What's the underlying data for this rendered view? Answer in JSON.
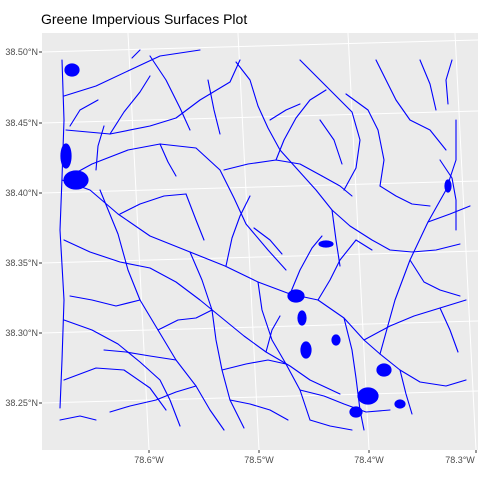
{
  "title": "Greene Impervious Surfaces Plot",
  "colors": {
    "panel_bg": "#ebebeb",
    "gridline": "#ffffff",
    "features": "#0000ff",
    "axis_text": "#4d4d4d"
  },
  "map": {
    "feature_type": "impervious surfaces (roads and developed areas)",
    "y_axis_ticks": [
      "38.50°N",
      "38.45°N",
      "38.40°N",
      "38.35°N",
      "38.30°N",
      "38.25°N"
    ],
    "x_axis_ticks": [
      "78.6°W",
      "78.5°W",
      "78.4°W",
      "78.3°W"
    ],
    "graticule": "rotated lat/lon lines (projected)"
  }
}
